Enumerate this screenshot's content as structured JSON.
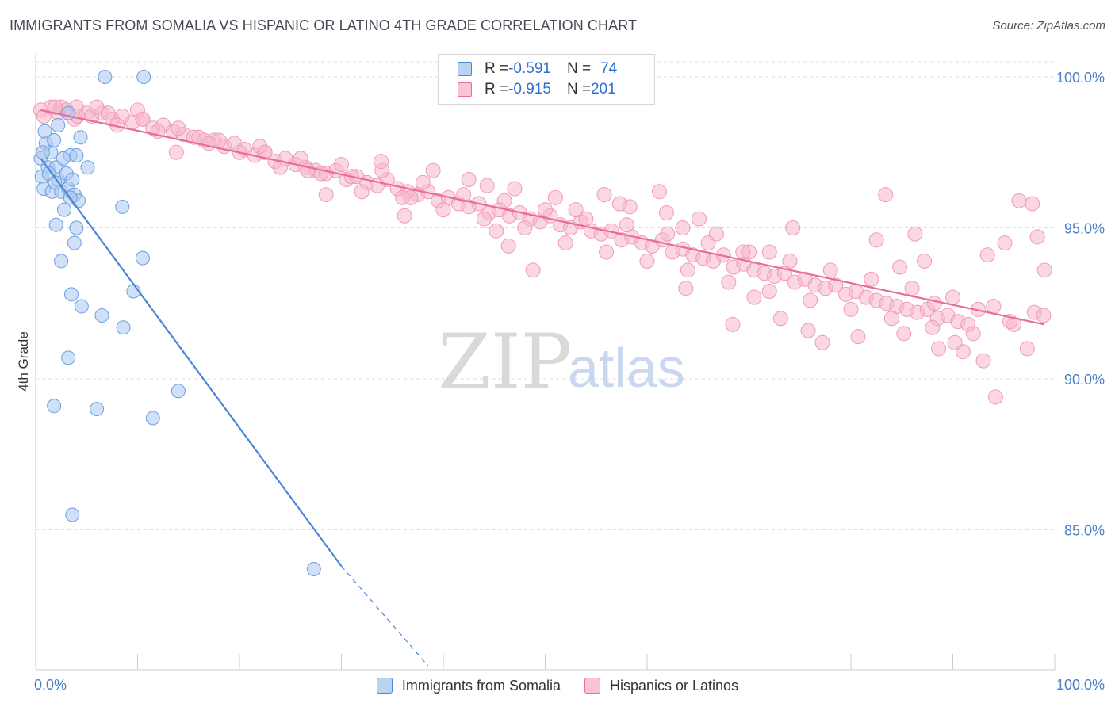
{
  "title": "IMMIGRANTS FROM SOMALIA VS HISPANIC OR LATINO 4TH GRADE CORRELATION CHART",
  "source": "Source: ZipAtlas.com",
  "watermark": {
    "zip": "ZIP",
    "atlas": "atlas"
  },
  "legend": {
    "rows": [
      {
        "r_label": "R = ",
        "r_value": "-0.591",
        "n_label": "N = ",
        "n_value": "74",
        "color": "#a9c8f0"
      },
      {
        "r_label": "R = ",
        "r_value": "-0.915",
        "n_label": "N = ",
        "n_value": "201",
        "color": "#f7b6ca"
      }
    ]
  },
  "chart_data": {
    "type": "scatter",
    "xlabel": "",
    "ylabel": "4th Grade",
    "xlim": [
      0,
      100
    ],
    "ylim": [
      80.5,
      100.8
    ],
    "x_tick_labels": [
      "0.0%",
      "100.0%"
    ],
    "y_ticks": [
      85,
      90,
      95,
      100
    ],
    "y_tick_labels": [
      "85.0%",
      "90.0%",
      "95.0%",
      "100.0%"
    ],
    "grid": "horizontal dashed",
    "legend_position": "top-center",
    "series": [
      {
        "name": "Immigrants from Somalia",
        "color": "#4a86d8",
        "fill": "#a9c8f0",
        "trend": {
          "x0": 0.5,
          "y0": 97.3,
          "x1": 30.0,
          "y1": 83.8,
          "dash_x1": 38.5,
          "dash_y1": 80.5
        },
        "points": [
          [
            0.5,
            97.3
          ],
          [
            0.6,
            96.7
          ],
          [
            0.8,
            96.3
          ],
          [
            1.0,
            97.8
          ],
          [
            1.2,
            97.0
          ],
          [
            0.9,
            98.2
          ],
          [
            1.5,
            97.5
          ],
          [
            1.6,
            96.2
          ],
          [
            1.8,
            97.9
          ],
          [
            2.0,
            97.0
          ],
          [
            2.2,
            96.6
          ],
          [
            2.5,
            96.2
          ],
          [
            2.8,
            95.6
          ],
          [
            3.0,
            96.8
          ],
          [
            3.2,
            96.3
          ],
          [
            3.4,
            97.4
          ],
          [
            3.6,
            96.6
          ],
          [
            3.8,
            96.1
          ],
          [
            4.2,
            95.9
          ],
          [
            2.2,
            98.4
          ],
          [
            3.2,
            98.8
          ],
          [
            4.4,
            98.0
          ],
          [
            5.1,
            97.0
          ],
          [
            2.0,
            95.1
          ],
          [
            4.0,
            95.0
          ],
          [
            3.8,
            94.5
          ],
          [
            2.5,
            93.9
          ],
          [
            3.5,
            92.8
          ],
          [
            4.5,
            92.4
          ],
          [
            6.5,
            92.1
          ],
          [
            8.6,
            91.7
          ],
          [
            3.2,
            90.7
          ],
          [
            1.8,
            89.1
          ],
          [
            6.0,
            89.0
          ],
          [
            11.5,
            88.7
          ],
          [
            14.0,
            89.6
          ],
          [
            3.6,
            85.5
          ],
          [
            27.3,
            83.7
          ],
          [
            6.8,
            100.0
          ],
          [
            10.6,
            100.0
          ],
          [
            8.5,
            95.7
          ],
          [
            10.5,
            94.0
          ],
          [
            9.6,
            92.9
          ],
          [
            4.0,
            97.4
          ],
          [
            2.7,
            97.3
          ],
          [
            1.3,
            96.8
          ],
          [
            3.4,
            96.0
          ],
          [
            0.7,
            97.5
          ],
          [
            1.9,
            96.5
          ]
        ]
      },
      {
        "name": "Hispanics or Latinos",
        "color": "#e86c97",
        "fill": "#f7b6ca",
        "trend": {
          "x0": 0.5,
          "y0": 98.9,
          "x1": 99.0,
          "y1": 91.8
        },
        "points": [
          [
            0.5,
            98.9
          ],
          [
            1.5,
            99.0
          ],
          [
            2.5,
            99.0
          ],
          [
            3.0,
            98.9
          ],
          [
            4.0,
            99.0
          ],
          [
            5.0,
            98.8
          ],
          [
            5.5,
            98.7
          ],
          [
            6.5,
            98.8
          ],
          [
            7.5,
            98.6
          ],
          [
            8.5,
            98.7
          ],
          [
            9.5,
            98.5
          ],
          [
            10.5,
            98.6
          ],
          [
            11.5,
            98.3
          ],
          [
            12.5,
            98.4
          ],
          [
            13.5,
            98.2
          ],
          [
            14.5,
            98.1
          ],
          [
            15.5,
            98.0
          ],
          [
            16.5,
            97.9
          ],
          [
            17.5,
            97.9
          ],
          [
            18.5,
            97.7
          ],
          [
            19.5,
            97.8
          ],
          [
            20.5,
            97.6
          ],
          [
            21.5,
            97.4
          ],
          [
            22.5,
            97.5
          ],
          [
            23.5,
            97.2
          ],
          [
            24.5,
            97.3
          ],
          [
            25.5,
            97.1
          ],
          [
            26.5,
            97.0
          ],
          [
            27.5,
            96.9
          ],
          [
            28.5,
            96.8
          ],
          [
            29.5,
            96.9
          ],
          [
            30.5,
            96.6
          ],
          [
            31.5,
            96.7
          ],
          [
            32.5,
            96.5
          ],
          [
            33.5,
            96.4
          ],
          [
            34.5,
            96.6
          ],
          [
            35.5,
            96.3
          ],
          [
            36.5,
            96.2
          ],
          [
            37.5,
            96.1
          ],
          [
            38.5,
            96.2
          ],
          [
            39.5,
            95.9
          ],
          [
            40.5,
            96.0
          ],
          [
            41.5,
            95.8
          ],
          [
            42.5,
            95.7
          ],
          [
            43.5,
            95.8
          ],
          [
            44.5,
            95.5
          ],
          [
            45.5,
            95.6
          ],
          [
            46.5,
            95.4
          ],
          [
            47.5,
            95.5
          ],
          [
            48.5,
            95.3
          ],
          [
            49.5,
            95.2
          ],
          [
            50.5,
            95.4
          ],
          [
            51.5,
            95.1
          ],
          [
            52.5,
            95.0
          ],
          [
            53.5,
            95.2
          ],
          [
            54.5,
            94.9
          ],
          [
            55.5,
            94.8
          ],
          [
            56.5,
            94.9
          ],
          [
            57.5,
            94.6
          ],
          [
            58.5,
            94.7
          ],
          [
            59.5,
            94.5
          ],
          [
            60.5,
            94.4
          ],
          [
            61.5,
            94.6
          ],
          [
            62.5,
            94.2
          ],
          [
            63.5,
            94.3
          ],
          [
            64.5,
            94.1
          ],
          [
            65.5,
            94.0
          ],
          [
            66.5,
            93.9
          ],
          [
            67.5,
            94.1
          ],
          [
            68.5,
            93.7
          ],
          [
            69.5,
            93.8
          ],
          [
            70.5,
            93.6
          ],
          [
            71.5,
            93.5
          ],
          [
            72.5,
            93.4
          ],
          [
            73.5,
            93.5
          ],
          [
            74.5,
            93.2
          ],
          [
            75.5,
            93.3
          ],
          [
            76.5,
            93.1
          ],
          [
            77.5,
            93.0
          ],
          [
            78.5,
            93.1
          ],
          [
            79.5,
            92.8
          ],
          [
            80.5,
            92.9
          ],
          [
            81.5,
            92.7
          ],
          [
            82.5,
            92.6
          ],
          [
            83.5,
            92.5
          ],
          [
            84.5,
            92.4
          ],
          [
            85.5,
            92.3
          ],
          [
            86.5,
            92.2
          ],
          [
            87.5,
            92.3
          ],
          [
            88.5,
            92.0
          ],
          [
            89.5,
            92.1
          ],
          [
            90.5,
            91.9
          ],
          [
            91.5,
            91.8
          ],
          [
            0.8,
            98.7
          ],
          [
            2.2,
            98.8
          ],
          [
            3.8,
            98.6
          ],
          [
            6.0,
            99.0
          ],
          [
            8.0,
            98.4
          ],
          [
            10.0,
            98.9
          ],
          [
            12.0,
            98.2
          ],
          [
            14.0,
            98.3
          ],
          [
            16.0,
            98.0
          ],
          [
            18.0,
            97.9
          ],
          [
            20.0,
            97.5
          ],
          [
            22.0,
            97.7
          ],
          [
            24.0,
            97.0
          ],
          [
            26.0,
            97.3
          ],
          [
            28.0,
            96.8
          ],
          [
            30.0,
            97.1
          ],
          [
            32.0,
            96.2
          ],
          [
            34.0,
            96.9
          ],
          [
            36.0,
            96.0
          ],
          [
            38.0,
            96.5
          ],
          [
            40.0,
            95.6
          ],
          [
            42.0,
            96.1
          ],
          [
            44.0,
            95.3
          ],
          [
            46.0,
            95.9
          ],
          [
            48.0,
            95.0
          ],
          [
            50.0,
            95.6
          ],
          [
            52.0,
            94.5
          ],
          [
            54.0,
            95.3
          ],
          [
            56.0,
            94.2
          ],
          [
            58.0,
            95.1
          ],
          [
            60.0,
            93.9
          ],
          [
            62.0,
            94.8
          ],
          [
            64.0,
            93.6
          ],
          [
            66.0,
            94.5
          ],
          [
            68.0,
            93.2
          ],
          [
            70.0,
            94.2
          ],
          [
            72.0,
            92.9
          ],
          [
            74.0,
            93.9
          ],
          [
            76.0,
            92.6
          ],
          [
            78.0,
            93.6
          ],
          [
            80.0,
            92.3
          ],
          [
            82.0,
            93.3
          ],
          [
            84.0,
            92.0
          ],
          [
            86.0,
            93.0
          ],
          [
            88.0,
            91.7
          ],
          [
            90.0,
            92.7
          ],
          [
            92.0,
            91.5
          ],
          [
            94.0,
            92.4
          ],
          [
            96.0,
            91.8
          ],
          [
            98.0,
            92.2
          ],
          [
            28.5,
            96.1
          ],
          [
            36.2,
            95.4
          ],
          [
            44.3,
            96.4
          ],
          [
            46.4,
            94.4
          ],
          [
            48.8,
            93.6
          ],
          [
            55.8,
            96.1
          ],
          [
            58.3,
            95.7
          ],
          [
            63.8,
            93.0
          ],
          [
            66.8,
            94.8
          ],
          [
            68.4,
            91.8
          ],
          [
            70.5,
            92.7
          ],
          [
            75.8,
            91.6
          ],
          [
            77.2,
            91.2
          ],
          [
            80.7,
            91.4
          ],
          [
            83.4,
            96.1
          ],
          [
            84.8,
            93.7
          ],
          [
            87.2,
            93.9
          ],
          [
            88.2,
            92.5
          ],
          [
            91.0,
            90.9
          ],
          [
            93.0,
            90.6
          ],
          [
            94.2,
            89.4
          ],
          [
            96.5,
            95.9
          ],
          [
            97.8,
            95.8
          ],
          [
            98.3,
            94.7
          ],
          [
            99.0,
            93.6
          ],
          [
            97.3,
            91.0
          ],
          [
            95.1,
            94.5
          ],
          [
            93.4,
            94.1
          ],
          [
            86.3,
            94.8
          ],
          [
            82.5,
            94.6
          ],
          [
            72.0,
            94.2
          ],
          [
            69.4,
            94.2
          ],
          [
            63.5,
            95.0
          ],
          [
            61.2,
            96.2
          ],
          [
            53.0,
            95.6
          ],
          [
            45.2,
            94.9
          ],
          [
            36.8,
            96.0
          ],
          [
            33.9,
            97.2
          ],
          [
            31.0,
            96.7
          ],
          [
            26.7,
            96.9
          ],
          [
            22.5,
            97.5
          ],
          [
            17.0,
            97.8
          ],
          [
            13.8,
            97.5
          ],
          [
            10.5,
            98.6
          ],
          [
            7.1,
            98.8
          ],
          [
            4.1,
            98.7
          ],
          [
            1.9,
            99.0
          ],
          [
            39.0,
            96.9
          ],
          [
            42.5,
            96.6
          ],
          [
            47.0,
            96.3
          ],
          [
            51.0,
            96.0
          ],
          [
            57.3,
            95.8
          ],
          [
            61.9,
            95.5
          ],
          [
            65.1,
            95.3
          ],
          [
            74.3,
            95.0
          ],
          [
            85.2,
            91.5
          ],
          [
            88.6,
            91.0
          ],
          [
            90.2,
            91.2
          ],
          [
            92.5,
            92.3
          ],
          [
            95.6,
            91.9
          ],
          [
            98.9,
            92.1
          ],
          [
            73.1,
            92.0
          ]
        ]
      }
    ]
  },
  "bottom_legend": [
    {
      "label": "Immigrants from Somalia",
      "color": "#a9c8f0",
      "border": "#4a86d8"
    },
    {
      "label": "Hispanics or Latinos",
      "color": "#f7b6ca",
      "border": "#e86c97"
    }
  ]
}
